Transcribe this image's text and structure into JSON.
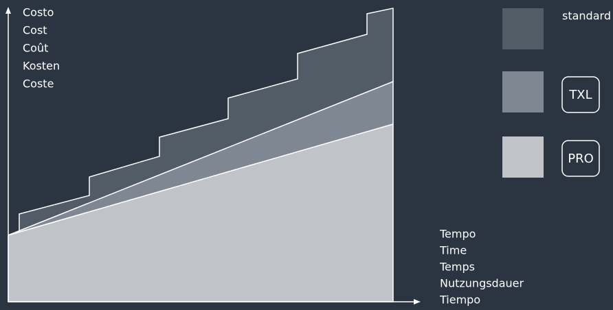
{
  "y_axis_labels": [
    "Costo",
    "Cost",
    "Coût",
    "Kosten",
    "Coste"
  ],
  "x_axis_labels": [
    "Tempo",
    "Time",
    "Temps",
    "Nutzungsdauer",
    "Tiempo"
  ],
  "legend": [
    {
      "label": "standard"
    },
    {
      "label": "TXL"
    },
    {
      "label": "PRO"
    }
  ]
}
